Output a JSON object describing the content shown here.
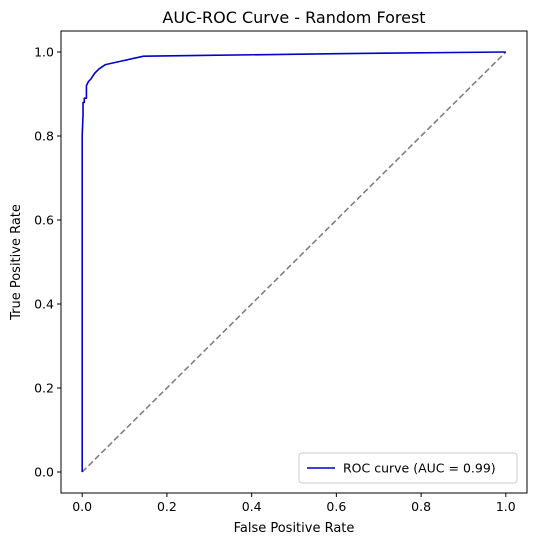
{
  "chart_data": {
    "type": "line",
    "title": "AUC-ROC Curve - Random Forest",
    "xlabel": "False Positive Rate",
    "ylabel": "True Positive Rate",
    "xlim": [
      -0.05,
      1.05
    ],
    "ylim": [
      -0.05,
      1.05
    ],
    "x_ticks": [
      "0.0",
      "0.2",
      "0.4",
      "0.6",
      "0.8",
      "1.0"
    ],
    "y_ticks": [
      "0.0",
      "0.2",
      "0.4",
      "0.6",
      "0.8",
      "1.0"
    ],
    "grid": false,
    "legend_position": "lower-right",
    "series": [
      {
        "name": "ROC curve (AUC = 0.99)",
        "color": "#0000cc",
        "style": "solid",
        "x": [
          0.0,
          0.0,
          0.002,
          0.002,
          0.005,
          0.005,
          0.01,
          0.01,
          0.015,
          0.02,
          0.03,
          0.04,
          0.055,
          0.1,
          0.145,
          0.3,
          0.6,
          1.0
        ],
        "y": [
          0.0,
          0.8,
          0.85,
          0.88,
          0.88,
          0.89,
          0.89,
          0.92,
          0.93,
          0.935,
          0.95,
          0.96,
          0.97,
          0.98,
          0.99,
          0.992,
          0.996,
          1.0
        ]
      },
      {
        "name": "",
        "color": "#808080",
        "style": "dashed",
        "x": [
          0.0,
          1.0
        ],
        "y": [
          0.0,
          1.0
        ]
      }
    ]
  }
}
